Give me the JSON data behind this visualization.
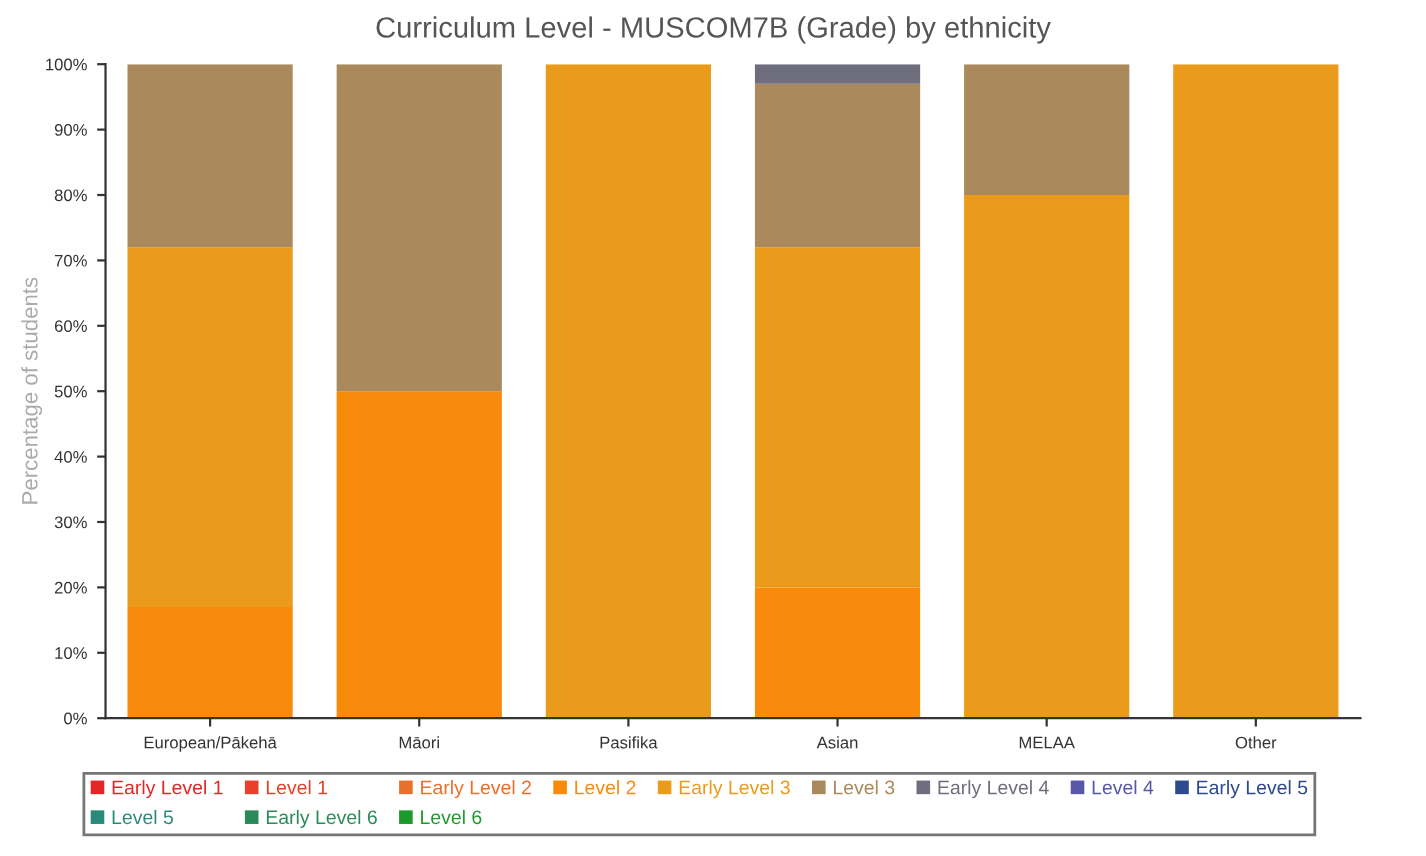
{
  "chart_data": {
    "type": "bar",
    "title": "Curriculum Level - MUSCOM7B (Grade) by ethnicity",
    "ylabel": "Percentage of students",
    "stacked": true,
    "categories": [
      "European/Pākehā",
      "Māori",
      "Pasifika",
      "Asian",
      "MELAA",
      "Other"
    ],
    "series": [
      {
        "name": "Early Level 1",
        "color": "#e32626",
        "values": [
          null,
          null,
          null,
          null,
          null,
          null
        ]
      },
      {
        "name": "Level 1",
        "color": "#e8402a",
        "values": [
          null,
          null,
          null,
          null,
          null,
          null
        ]
      },
      {
        "name": "Early Level 2",
        "color": "#e8702a",
        "values": [
          null,
          null,
          null,
          null,
          null,
          null
        ]
      },
      {
        "name": "Level 2",
        "color": "#f88a0c",
        "values": [
          17,
          50,
          null,
          20,
          null,
          null
        ]
      },
      {
        "name": "Early Level 3",
        "color": "#eb9b1c",
        "values": [
          55,
          null,
          100,
          52,
          80,
          100
        ]
      },
      {
        "name": "Level 3",
        "color": "#aa8a5c",
        "values": [
          28,
          50,
          null,
          25,
          20,
          null
        ]
      },
      {
        "name": "Early Level 4",
        "color": "#6e6e7e",
        "values": [
          null,
          null,
          null,
          3,
          null,
          null
        ]
      },
      {
        "name": "Level 4",
        "color": "#5858a8",
        "values": [
          null,
          null,
          null,
          null,
          null,
          null
        ]
      },
      {
        "name": "Early Level 5",
        "color": "#2c4a8c",
        "values": [
          null,
          null,
          null,
          null,
          null,
          null
        ]
      },
      {
        "name": "Level 5",
        "color": "#2a8a7a",
        "values": [
          null,
          null,
          null,
          null,
          null,
          null
        ]
      },
      {
        "name": "Early Level 6",
        "color": "#2a8a5a",
        "values": [
          null,
          null,
          null,
          null,
          null,
          null
        ]
      },
      {
        "name": "Level 6",
        "color": "#1c9a2c",
        "values": [
          null,
          null,
          null,
          null,
          null,
          null
        ]
      }
    ],
    "ylim": [
      0,
      100
    ],
    "yticks": [
      {
        "value": 0,
        "label": "0%"
      },
      {
        "value": 10,
        "label": "10%"
      },
      {
        "value": 20,
        "label": "20%"
      },
      {
        "value": 30,
        "label": "30%"
      },
      {
        "value": 40,
        "label": "40%"
      },
      {
        "value": 50,
        "label": "50%"
      },
      {
        "value": 60,
        "label": "60%"
      },
      {
        "value": 70,
        "label": "70%"
      },
      {
        "value": 80,
        "label": "80%"
      },
      {
        "value": 90,
        "label": "90%"
      },
      {
        "value": 100,
        "label": "100%"
      }
    ],
    "grid": false,
    "legend": "bottom"
  }
}
